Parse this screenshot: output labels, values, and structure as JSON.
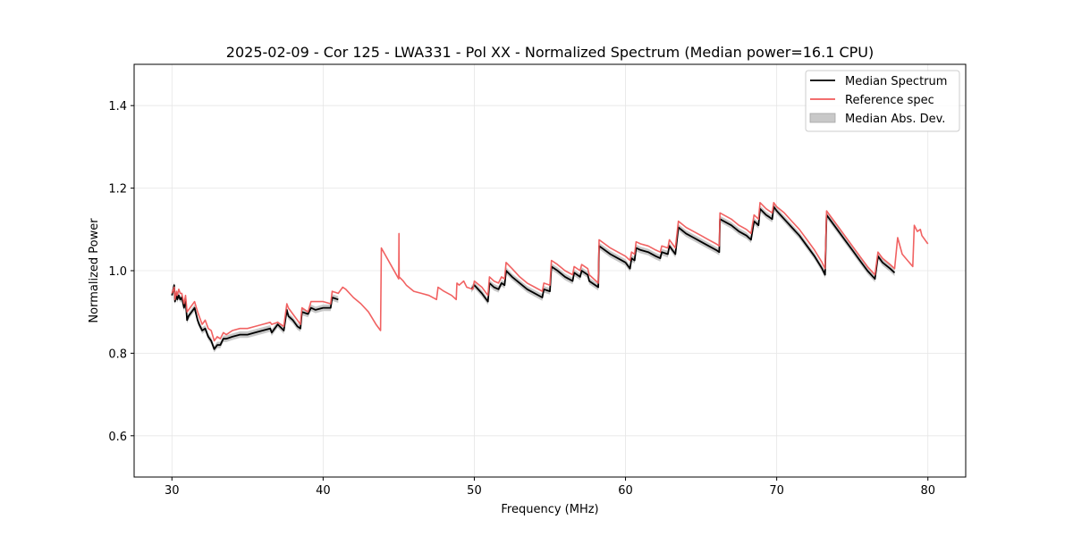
{
  "chart_data": {
    "type": "line",
    "title": "2025-02-09 - Cor 125 - LWA331 - Pol XX - Normalized Spectrum (Median power=16.1 CPU)",
    "xlabel": "Frequency (MHz)",
    "ylabel": "Normalized Power",
    "xlim": [
      27.5,
      82.5
    ],
    "ylim": [
      0.5,
      1.5
    ],
    "xticks": [
      30,
      40,
      50,
      60,
      70,
      80
    ],
    "yticks": [
      0.6,
      0.8,
      1.0,
      1.2,
      1.4
    ],
    "xtick_labels": [
      "30",
      "40",
      "50",
      "60",
      "70",
      "80"
    ],
    "ytick_labels": [
      "0.6",
      "0.8",
      "1.0",
      "1.2",
      "1.4"
    ],
    "grid": true,
    "legend_position": "top-right",
    "legend": [
      {
        "label": "Median Spectrum",
        "kind": "line",
        "color": "#000000"
      },
      {
        "label": "Reference spec",
        "kind": "line",
        "color": "#f05a5a"
      },
      {
        "label": "Median Abs. Dev.",
        "kind": "patch",
        "color": "#c8c8c8"
      }
    ],
    "mad_width": 0.008,
    "series": [
      {
        "name": "Reference spec",
        "color": "#f05a5a",
        "x": [
          30.0,
          30.15,
          30.2,
          30.3,
          30.35,
          30.45,
          30.55,
          30.65,
          30.8,
          30.9,
          31.0,
          31.1,
          31.5,
          31.7,
          31.8,
          32.0,
          32.2,
          32.4,
          32.6,
          32.8,
          33.0,
          33.2,
          33.4,
          33.6,
          34.0,
          34.5,
          35.0,
          35.5,
          36.0,
          36.5,
          36.6,
          37.0,
          37.4,
          37.6,
          37.7,
          38.0,
          38.3,
          38.5,
          38.6,
          39.0,
          39.2,
          39.5,
          40.0,
          40.5,
          40.6,
          41.0,
          41.3,
          41.5,
          42.0,
          42.5,
          43.0,
          43.5,
          43.8,
          43.85,
          45.0,
          45.02,
          45.03,
          45.3,
          45.5,
          46.0,
          46.5,
          47.0,
          47.5,
          47.6,
          48.0,
          48.5,
          48.8,
          48.85,
          49.0,
          49.3,
          49.5,
          49.9,
          50.0,
          50.5,
          50.9,
          51.0,
          51.3,
          51.6,
          51.8,
          52.0,
          52.1,
          52.5,
          53.0,
          53.5,
          54.0,
          54.5,
          54.6,
          55.0,
          55.1,
          55.5,
          56.0,
          56.5,
          56.6,
          57.0,
          57.1,
          57.5,
          57.6,
          58.2,
          58.25,
          59.0,
          60.0,
          60.3,
          60.4,
          60.6,
          60.7,
          61.0,
          61.5,
          62.0,
          62.3,
          62.4,
          62.8,
          62.9,
          63.3,
          63.5,
          64.0,
          64.5,
          65.0,
          65.5,
          66.0,
          66.2,
          66.25,
          67.0,
          67.5,
          68.0,
          68.3,
          68.5,
          68.8,
          68.9,
          69.3,
          69.5,
          69.7,
          69.8,
          70.0,
          70.5,
          71.0,
          71.5,
          72.0,
          72.5,
          73.0,
          73.2,
          73.3,
          74.0,
          74.5,
          75.0,
          75.5,
          76.0,
          76.5,
          76.7,
          77.0,
          77.5,
          77.8,
          78.0,
          78.3,
          79.0,
          79.1,
          79.3,
          79.5,
          79.6,
          80.0
        ],
        "y": [
          0.945,
          0.96,
          0.93,
          0.95,
          0.94,
          0.955,
          0.945,
          0.945,
          0.92,
          0.94,
          0.9,
          0.905,
          0.925,
          0.9,
          0.89,
          0.87,
          0.88,
          0.86,
          0.855,
          0.83,
          0.84,
          0.835,
          0.85,
          0.845,
          0.855,
          0.86,
          0.86,
          0.865,
          0.87,
          0.875,
          0.87,
          0.875,
          0.865,
          0.92,
          0.91,
          0.895,
          0.88,
          0.87,
          0.91,
          0.9,
          0.925,
          0.925,
          0.925,
          0.92,
          0.95,
          0.945,
          0.96,
          0.955,
          0.935,
          0.92,
          0.9,
          0.87,
          0.855,
          1.055,
          0.98,
          1.09,
          0.985,
          0.975,
          0.965,
          0.95,
          0.945,
          0.94,
          0.93,
          0.96,
          0.95,
          0.94,
          0.93,
          0.97,
          0.965,
          0.975,
          0.96,
          0.955,
          0.975,
          0.96,
          0.94,
          0.985,
          0.975,
          0.97,
          0.985,
          0.98,
          1.02,
          1.005,
          0.985,
          0.97,
          0.96,
          0.95,
          0.97,
          0.965,
          1.025,
          1.015,
          1.0,
          0.99,
          1.01,
          1.0,
          1.015,
          1.005,
          0.99,
          0.97,
          1.075,
          1.055,
          1.035,
          1.025,
          1.045,
          1.04,
          1.07,
          1.065,
          1.06,
          1.05,
          1.045,
          1.06,
          1.055,
          1.075,
          1.055,
          1.12,
          1.105,
          1.095,
          1.085,
          1.075,
          1.065,
          1.06,
          1.14,
          1.125,
          1.11,
          1.1,
          1.09,
          1.135,
          1.125,
          1.165,
          1.15,
          1.145,
          1.14,
          1.165,
          1.155,
          1.14,
          1.12,
          1.1,
          1.075,
          1.05,
          1.02,
          1.005,
          1.145,
          1.11,
          1.085,
          1.06,
          1.035,
          1.01,
          0.99,
          1.045,
          1.03,
          1.015,
          1.005,
          1.08,
          1.04,
          1.01,
          1.11,
          1.095,
          1.1,
          1.085,
          1.065
        ]
      },
      {
        "name": "Median Spectrum",
        "color": "#000000",
        "x": [
          30.0,
          30.15,
          30.2,
          30.3,
          30.35,
          30.45,
          30.55,
          30.65,
          30.8,
          30.9,
          31.0,
          31.1,
          31.5,
          31.7,
          31.8,
          32.0,
          32.2,
          32.4,
          32.6,
          32.8,
          33.0,
          33.2,
          33.4,
          33.6,
          34.0,
          34.5,
          35.0,
          35.5,
          36.0,
          36.5,
          36.6,
          37.0,
          37.4,
          37.6,
          37.7,
          38.0,
          38.3,
          38.5,
          38.6,
          39.0,
          39.2,
          39.5,
          40.0,
          40.5,
          40.6,
          41.0
        ],
        "y": [
          0.94,
          0.965,
          0.925,
          0.945,
          0.93,
          0.94,
          0.93,
          0.935,
          0.91,
          0.93,
          0.88,
          0.89,
          0.91,
          0.88,
          0.87,
          0.855,
          0.86,
          0.84,
          0.83,
          0.81,
          0.82,
          0.82,
          0.835,
          0.835,
          0.84,
          0.845,
          0.845,
          0.85,
          0.855,
          0.86,
          0.85,
          0.87,
          0.855,
          0.905,
          0.89,
          0.88,
          0.865,
          0.86,
          0.9,
          0.895,
          0.91,
          0.905,
          0.91,
          0.91,
          0.935,
          0.93
        ]
      },
      {
        "name": "Median Spectrum",
        "color": "#000000",
        "x": [
          49.8,
          50.0,
          50.5,
          50.9,
          51.0,
          51.3,
          51.6,
          51.8,
          52.0,
          52.1,
          52.5,
          53.0,
          53.5,
          54.0,
          54.5,
          54.6,
          55.0,
          55.1,
          55.5,
          56.0,
          56.5,
          56.6,
          57.0,
          57.1,
          57.5,
          57.6,
          58.2,
          58.25,
          59.0,
          60.0,
          60.3,
          60.4,
          60.6,
          60.7,
          61.0,
          61.5,
          62.0,
          62.3,
          62.4,
          62.8,
          62.9,
          63.3,
          63.5,
          64.0,
          64.5,
          65.0,
          65.5,
          66.0,
          66.2,
          66.25,
          67.0,
          67.5,
          68.0,
          68.3,
          68.5,
          68.8,
          68.9,
          69.3,
          69.5,
          69.7,
          69.8,
          70.0,
          70.5,
          71.0,
          71.5,
          72.0,
          72.5,
          73.0,
          73.2,
          73.3,
          74.0,
          74.5,
          75.0,
          75.5,
          76.0,
          76.5,
          76.7,
          77.0,
          77.5,
          77.8
        ],
        "y": [
          0.955,
          0.965,
          0.945,
          0.925,
          0.97,
          0.96,
          0.955,
          0.97,
          0.965,
          1.0,
          0.985,
          0.97,
          0.955,
          0.945,
          0.935,
          0.955,
          0.95,
          1.01,
          1.0,
          0.985,
          0.975,
          0.995,
          0.985,
          1.0,
          0.99,
          0.975,
          0.96,
          1.06,
          1.04,
          1.02,
          1.005,
          1.03,
          1.025,
          1.055,
          1.05,
          1.045,
          1.035,
          1.03,
          1.045,
          1.04,
          1.06,
          1.04,
          1.105,
          1.09,
          1.08,
          1.07,
          1.06,
          1.05,
          1.045,
          1.125,
          1.11,
          1.095,
          1.085,
          1.075,
          1.12,
          1.11,
          1.15,
          1.135,
          1.13,
          1.125,
          1.155,
          1.145,
          1.125,
          1.105,
          1.085,
          1.06,
          1.035,
          1.005,
          0.99,
          1.135,
          1.1,
          1.075,
          1.05,
          1.025,
          1.0,
          0.98,
          1.035,
          1.02,
          1.005,
          0.995
        ]
      }
    ]
  }
}
